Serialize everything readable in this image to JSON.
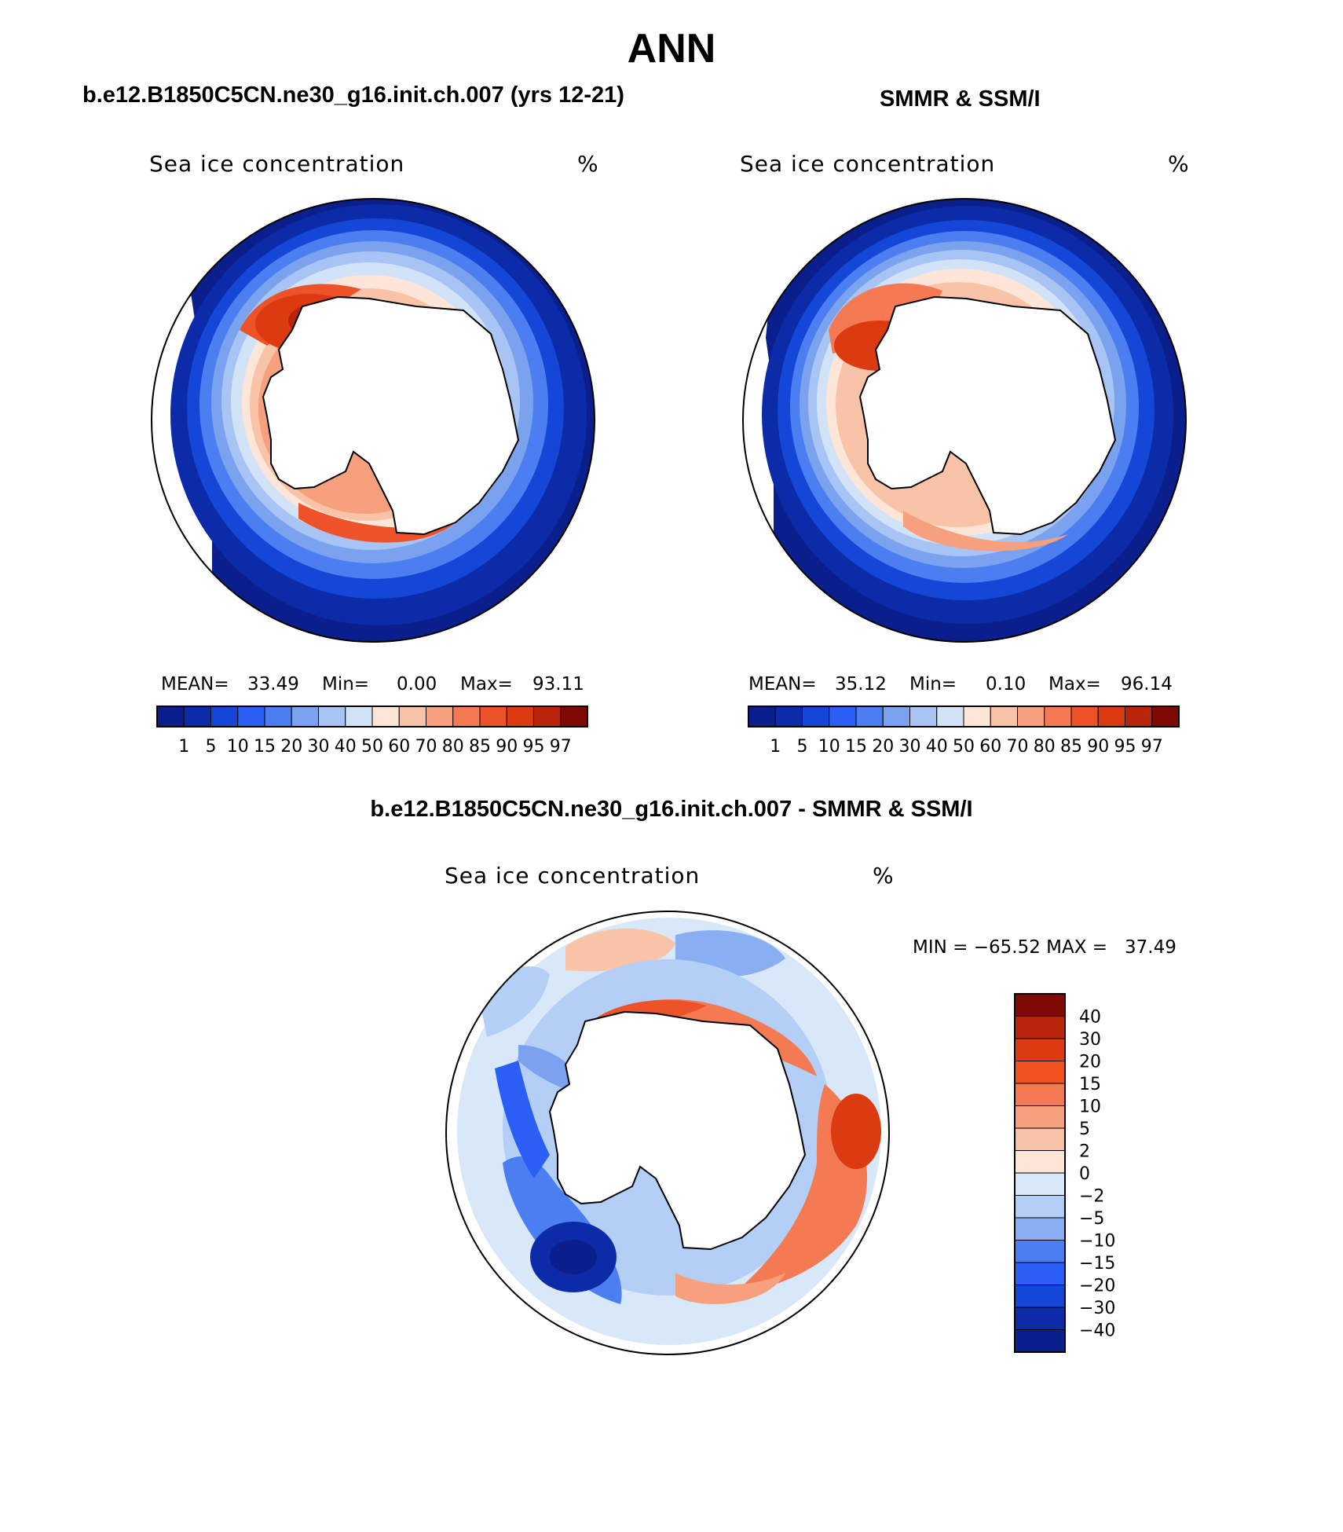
{
  "figure": {
    "title": "ANN",
    "left_subtitle": "b.e12.B1850C5CN.ne30_g16.init.ch.007 (yrs 12-21)",
    "right_subtitle": "SMMR & SSM/I",
    "diff_subtitle": "b.e12.B1850C5CN.ne30_g16.init.ch.007 - SMMR & SSM/I"
  },
  "panels": {
    "model": {
      "variable": "Sea ice concentration",
      "units": "%",
      "mean_label": "MEAN=",
      "mean": "33.49",
      "min_label": "Min=",
      "min": "0.00",
      "max_label": "Max=",
      "max": "93.11"
    },
    "obs": {
      "variable": "Sea ice concentration",
      "units": "%",
      "mean_label": "MEAN=",
      "mean": "35.12",
      "min_label": "Min=",
      "min": "0.10",
      "max_label": "Max=",
      "max": "96.14"
    },
    "diff": {
      "variable": "Sea ice concentration",
      "units": "%",
      "minmax": "MIN = −65.52 MAX =   37.49"
    }
  },
  "scales": {
    "abs_levels": [
      "1",
      "5",
      "10",
      "15",
      "20",
      "30",
      "40",
      "50",
      "60",
      "70",
      "80",
      "85",
      "90",
      "95",
      "97"
    ],
    "abs_colors": [
      "#0a1f8c",
      "#0b2ba8",
      "#1446d8",
      "#2a5ef5",
      "#4b7ef0",
      "#7aa2ee",
      "#a8c4f4",
      "#d2e3f8",
      "#fde6d8",
      "#f9c3a8",
      "#f6a07e",
      "#f37a52",
      "#ee5228",
      "#dc3a10",
      "#b8250a",
      "#7f0a03"
    ],
    "diff_levels": [
      "40",
      "30",
      "20",
      "15",
      "10",
      "5",
      "2",
      "0",
      "−2",
      "−5",
      "−10",
      "−15",
      "−20",
      "−30",
      "−40"
    ],
    "diff_colors": [
      "#7f0a03",
      "#b8250a",
      "#dc3a10",
      "#f25220",
      "#f37a52",
      "#f6a07e",
      "#f9c3a8",
      "#fde6d8",
      "#d8e8f8",
      "#b4cff6",
      "#8aaef2",
      "#4b7ef0",
      "#2a5ef5",
      "#1446d8",
      "#0b2ba8",
      "#0a1f8c"
    ]
  },
  "chart_data": [
    {
      "type": "heatmap",
      "title": "b.e12.B1850C5CN.ne30_g16.init.ch.007 (yrs 12-21)",
      "variable": "Sea ice concentration",
      "units": "%",
      "projection": "south polar stereographic",
      "mean": 33.49,
      "min": 0.0,
      "max": 93.11,
      "contour_levels": [
        1,
        5,
        10,
        15,
        20,
        30,
        40,
        50,
        60,
        70,
        80,
        85,
        90,
        95,
        97
      ],
      "colorbar": "horizontal, below"
    },
    {
      "type": "heatmap",
      "title": "SMMR & SSM/I",
      "variable": "Sea ice concentration",
      "units": "%",
      "projection": "south polar stereographic",
      "mean": 35.12,
      "min": 0.1,
      "max": 96.14,
      "contour_levels": [
        1,
        5,
        10,
        15,
        20,
        30,
        40,
        50,
        60,
        70,
        80,
        85,
        90,
        95,
        97
      ],
      "colorbar": "horizontal, below"
    },
    {
      "type": "heatmap",
      "title": "b.e12.B1850C5CN.ne30_g16.init.ch.007 - SMMR & SSM/I",
      "variable": "Sea ice concentration",
      "units": "%",
      "projection": "south polar stereographic",
      "min": -65.52,
      "max": 37.49,
      "contour_levels": [
        -40,
        -30,
        -20,
        -15,
        -10,
        -5,
        -2,
        0,
        2,
        5,
        10,
        15,
        20,
        30,
        40
      ],
      "colorbar": "vertical, right"
    }
  ]
}
